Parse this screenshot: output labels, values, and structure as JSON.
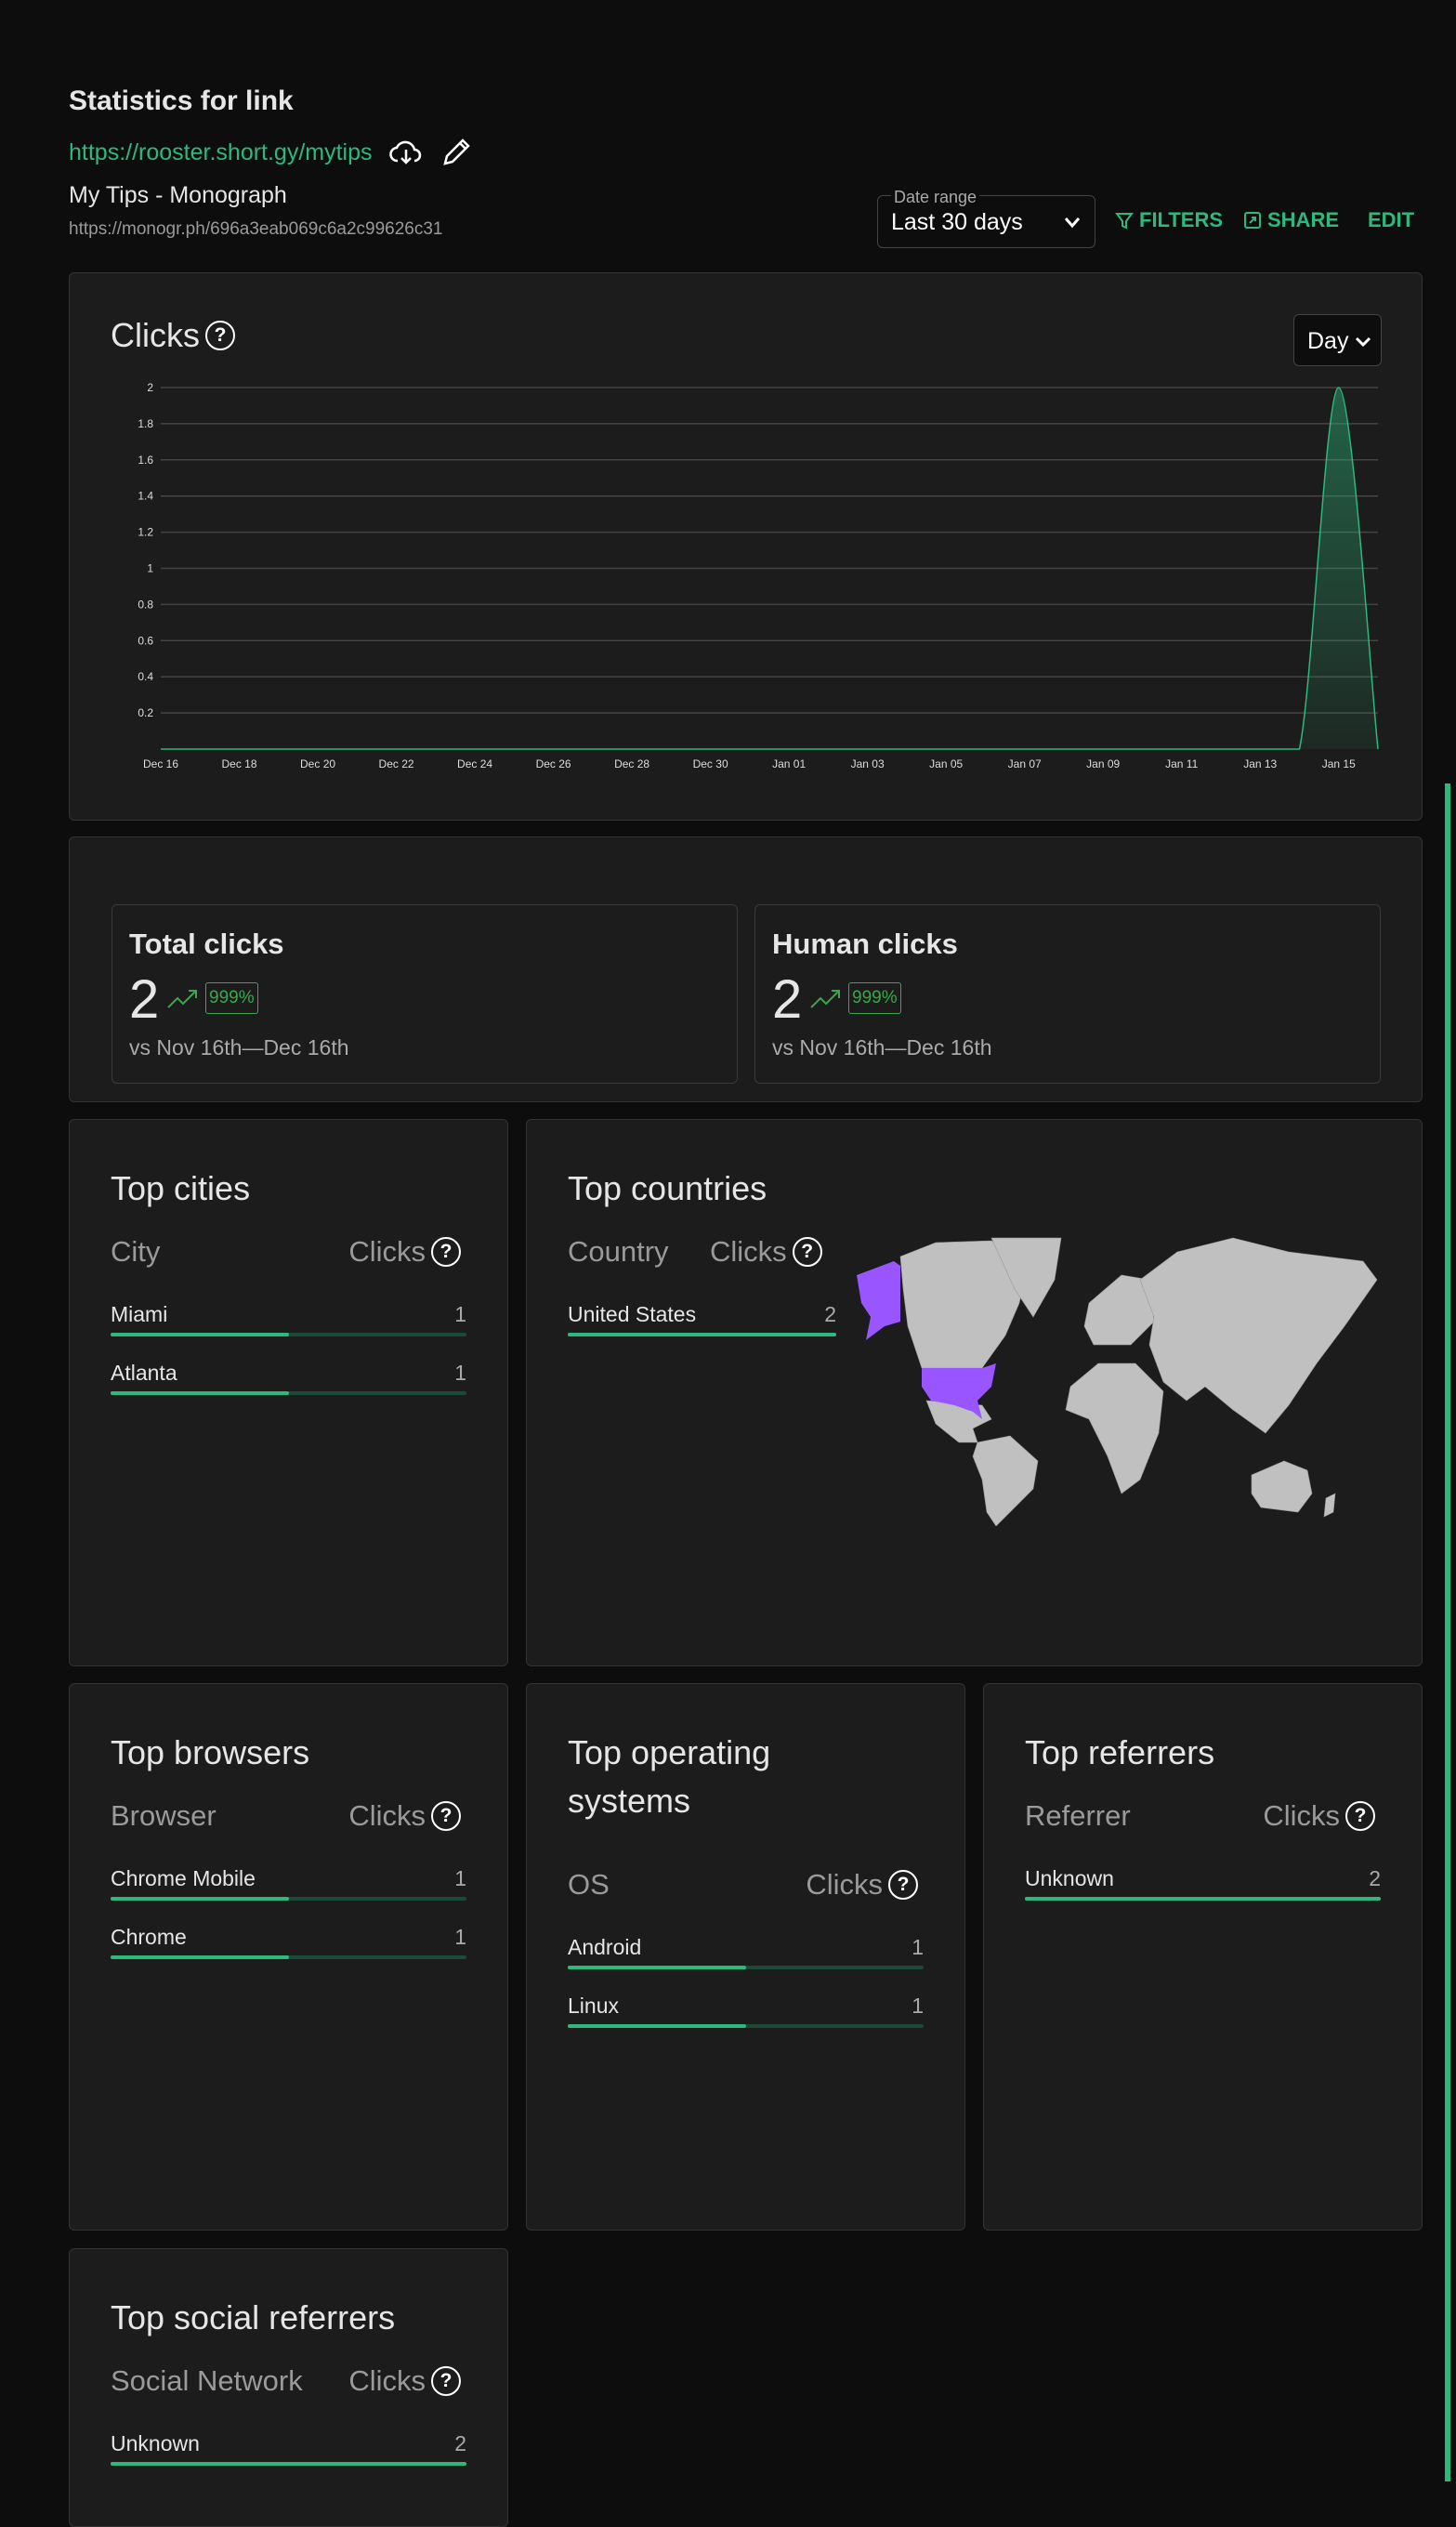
{
  "header": {
    "title": "Statistics for link",
    "short_link": "https://rooster.short.gy/mytips",
    "link_title": "My Tips - Monograph",
    "destination_url": "https://monogr.ph/696a3eab069c6a2c99626c31",
    "date_range_label": "Date range",
    "date_range_value": "Last 30 days",
    "filters_label": "FILTERS",
    "share_label": "SHARE",
    "edit_label": "EDIT"
  },
  "clicks_chart": {
    "title": "Clicks",
    "interval": "Day",
    "chart_data": {
      "type": "area",
      "x": [
        "Dec 16",
        "Dec 17",
        "Dec 18",
        "Dec 19",
        "Dec 20",
        "Dec 21",
        "Dec 22",
        "Dec 23",
        "Dec 24",
        "Dec 25",
        "Dec 26",
        "Dec 27",
        "Dec 28",
        "Dec 29",
        "Dec 30",
        "Dec 31",
        "Jan 01",
        "Jan 02",
        "Jan 03",
        "Jan 04",
        "Jan 05",
        "Jan 06",
        "Jan 07",
        "Jan 08",
        "Jan 09",
        "Jan 10",
        "Jan 11",
        "Jan 12",
        "Jan 13",
        "Jan 14",
        "Jan 15",
        "Jan 16"
      ],
      "values": [
        0,
        0,
        0,
        0,
        0,
        0,
        0,
        0,
        0,
        0,
        0,
        0,
        0,
        0,
        0,
        0,
        0,
        0,
        0,
        0,
        0,
        0,
        0,
        0,
        0,
        0,
        0,
        0,
        0,
        0,
        2,
        0
      ],
      "x_tick_labels": [
        "Dec 16",
        "Dec 18",
        "Dec 20",
        "Dec 22",
        "Dec 24",
        "Dec 26",
        "Dec 28",
        "Dec 30",
        "Jan 01",
        "Jan 03",
        "Jan 05",
        "Jan 07",
        "Jan 09",
        "Jan 11",
        "Jan 13",
        "Jan 15"
      ],
      "y_tick_labels": [
        "0.2",
        "0.4",
        "0.6",
        "0.8",
        "1",
        "1.2",
        "1.4",
        "1.6",
        "1.8",
        "2"
      ],
      "ylim": [
        0,
        2
      ],
      "grid": true,
      "color": "#2db87d"
    }
  },
  "summary": {
    "total": {
      "label": "Total clicks",
      "value": "2",
      "change": "999%",
      "compare": "vs  Nov 16th—Dec 16th"
    },
    "human": {
      "label": "Human clicks",
      "value": "2",
      "change": "999%",
      "compare": "vs  Nov 16th—Dec 16th"
    }
  },
  "total_clicks": 2,
  "cities": {
    "title": "Top cities",
    "col1": "City",
    "col2": "Clicks",
    "rows": [
      {
        "name": "Miami",
        "clicks": 1
      },
      {
        "name": "Atlanta",
        "clicks": 1
      }
    ]
  },
  "countries": {
    "title": "Top countries",
    "col1": "Country",
    "col2": "Clicks",
    "rows": [
      {
        "name": "United States",
        "clicks": 2
      }
    ],
    "highlight_color": "#9955ff",
    "land_color": "#c0c0c0"
  },
  "browsers": {
    "title": "Top browsers",
    "col1": "Browser",
    "col2": "Clicks",
    "rows": [
      {
        "name": "Chrome Mobile",
        "clicks": 1
      },
      {
        "name": "Chrome",
        "clicks": 1
      }
    ]
  },
  "os": {
    "title": "Top operating systems",
    "col1": "OS",
    "col2": "Clicks",
    "rows": [
      {
        "name": "Android",
        "clicks": 1
      },
      {
        "name": "Linux",
        "clicks": 1
      }
    ]
  },
  "referrers": {
    "title": "Top referrers",
    "col1": "Referrer",
    "col2": "Clicks",
    "rows": [
      {
        "name": "Unknown",
        "clicks": 2
      }
    ]
  },
  "social": {
    "title": "Top social referrers",
    "col1": "Social Network",
    "col2": "Clicks",
    "rows": [
      {
        "name": "Unknown",
        "clicks": 2
      }
    ]
  },
  "help_icon_glyph": "?"
}
